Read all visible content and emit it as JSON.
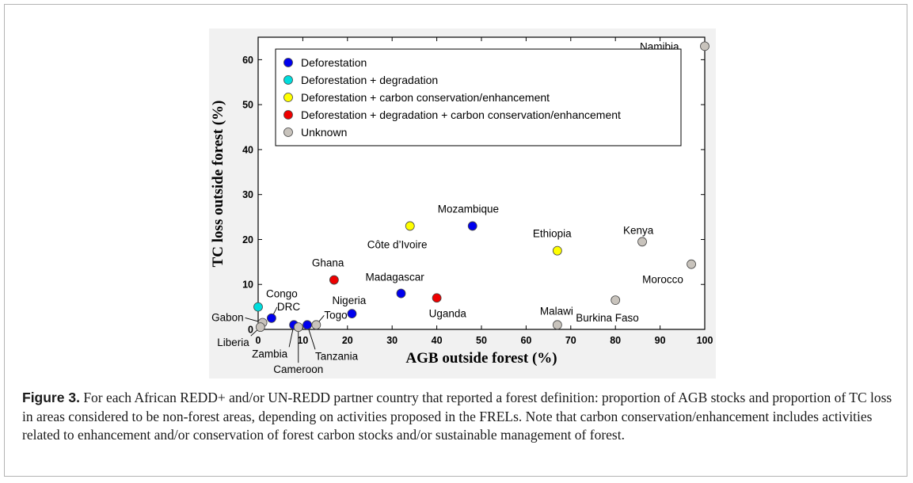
{
  "chart_data": {
    "type": "scatter",
    "title": "",
    "xlabel": "AGB outside forest (%)",
    "ylabel": "TC loss outside forest (%)",
    "xlim": [
      0,
      100
    ],
    "ylim": [
      0,
      65
    ],
    "x_ticks": [
      "0",
      "10",
      "20",
      "30",
      "40",
      "50",
      "60",
      "70",
      "80",
      "90",
      "100"
    ],
    "y_ticks": [
      "0",
      "10",
      "20",
      "30",
      "40",
      "50",
      "60"
    ],
    "grid": false,
    "legend_position": "top-left",
    "series": [
      {
        "name": "Deforestation",
        "color": "#0000ee",
        "points": [
          {
            "label": "DRC",
            "x": 3,
            "y": 2.5
          },
          {
            "label": "Zambia",
            "x": 8,
            "y": 1
          },
          {
            "label": "Tanzania",
            "x": 11,
            "y": 1
          },
          {
            "label": "Nigeria",
            "x": 21,
            "y": 3.5
          },
          {
            "label": "Madagascar",
            "x": 32,
            "y": 8
          },
          {
            "label": "Mozambique",
            "x": 48,
            "y": 23
          }
        ]
      },
      {
        "name": "Deforestation + degradation",
        "color": "#00dddd",
        "points": [
          {
            "label": "Congo",
            "x": 0,
            "y": 5
          }
        ]
      },
      {
        "name": "Deforestation + carbon conservation/enhancement",
        "color": "#ffff00",
        "points": [
          {
            "label": "Côte d’Ivoire",
            "x": 34,
            "y": 23
          },
          {
            "label": "Ethiopia",
            "x": 67,
            "y": 17.5
          }
        ]
      },
      {
        "name": "Deforestation + degradation + carbon conservation/enhancement",
        "color": "#ee0000",
        "points": [
          {
            "label": "Ghana",
            "x": 17,
            "y": 11
          },
          {
            "label": "Uganda",
            "x": 40,
            "y": 7
          }
        ]
      },
      {
        "name": "Unknown",
        "color": "#c8c3bc",
        "points": [
          {
            "label": "Gabon",
            "x": 1,
            "y": 1.5
          },
          {
            "label": "Liberia",
            "x": 0.5,
            "y": 0.5
          },
          {
            "label": "Cameroon",
            "x": 9,
            "y": 0.5
          },
          {
            "label": "Togo",
            "x": 13,
            "y": 1
          },
          {
            "label": "Malawi",
            "x": 67,
            "y": 1
          },
          {
            "label": "Burkina Faso",
            "x": 80,
            "y": 6.5
          },
          {
            "label": "Kenya",
            "x": 86,
            "y": 19.5
          },
          {
            "label": "Morocco",
            "x": 97,
            "y": 14.5
          },
          {
            "label": "Namibia",
            "x": 100,
            "y": 63
          }
        ]
      }
    ]
  },
  "caption": {
    "label": "Figure 3.",
    "text": "For each African REDD+ and/or UN-REDD partner country that reported a forest definition: proportion of AGB stocks and proportion of TC loss in areas considered to be non-forest areas, depending on activities proposed in the FRELs. Note that carbon conservation/enhancement includes activities related to enhancement and/or conservation of forest carbon stocks and/or sustainable management of forest."
  }
}
